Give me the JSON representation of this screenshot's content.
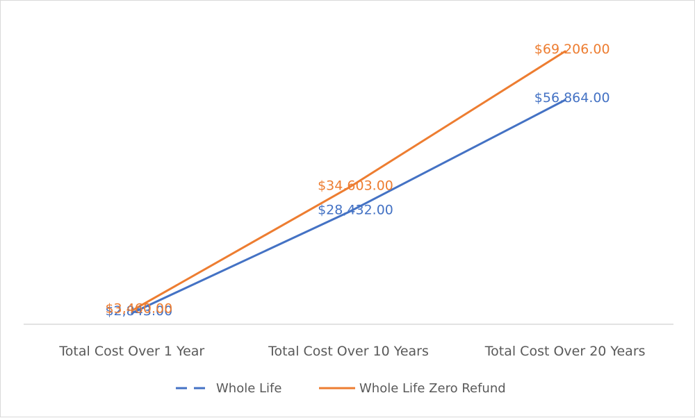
{
  "chart_data": {
    "type": "line",
    "title": "",
    "xlabel": "",
    "ylabel": "",
    "categories": [
      "Total Cost Over 1 Year",
      "Total Cost Over 10 Years",
      "Total Cost Over 20 Years"
    ],
    "ylim": [
      0,
      75000
    ],
    "grid": false,
    "legend_position": "bottom",
    "series": [
      {
        "name": "Whole Life",
        "color": "#4472c4",
        "values": [
          2843,
          28432,
          56864
        ],
        "labels": [
          "$2,843.00",
          "$28,432.00",
          "$56,864.00"
        ]
      },
      {
        "name": "Whole Life Zero Refund",
        "color": "#ed7d31",
        "values": [
          3460,
          34603,
          69206
        ],
        "labels": [
          "$3,460.00",
          "$34,603.00",
          "$69,206.00"
        ]
      }
    ]
  }
}
